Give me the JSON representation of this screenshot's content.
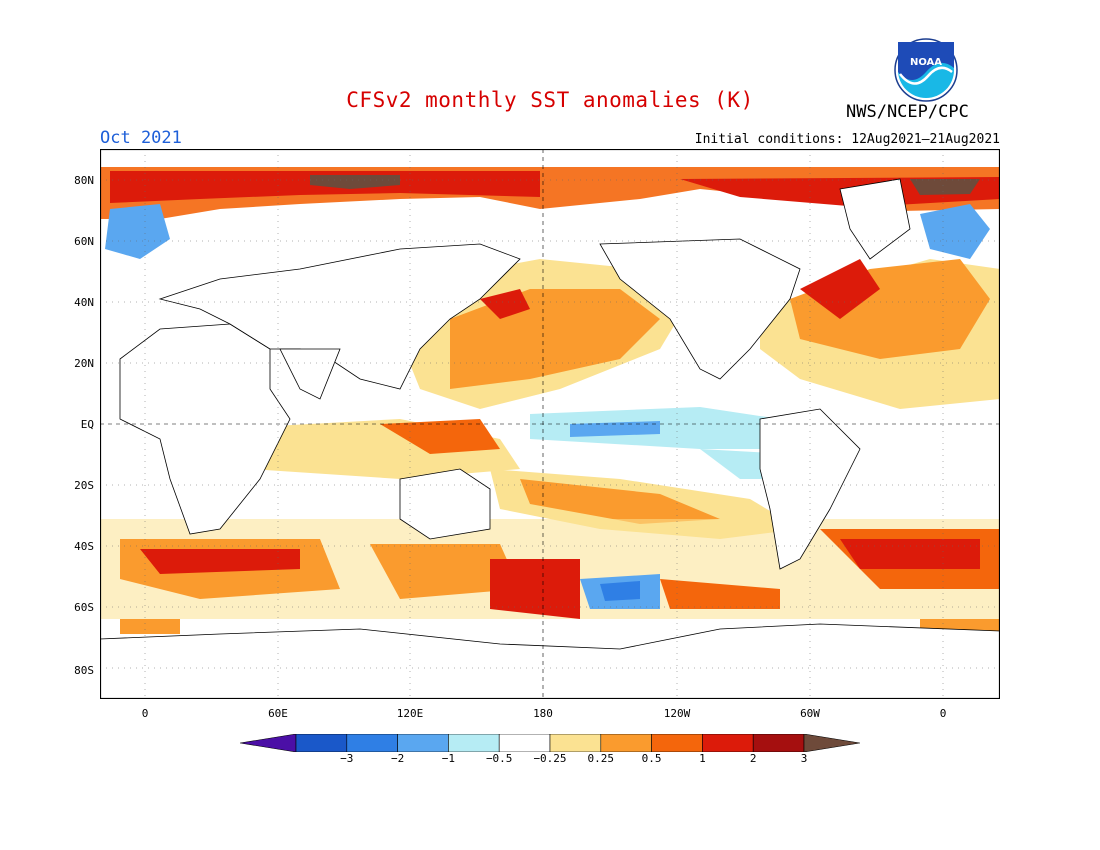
{
  "title": "CFSv2 monthly SST anomalies (K)",
  "month": "Oct 2021",
  "initial_conditions": "Initial conditions: 12Aug2021–21Aug2021",
  "agency": "NWS/NCEP/CPC",
  "logo_text": "NOAA",
  "colors": {
    "title": "#d60000",
    "month": "#1e5fd8",
    "ocean_zero": "#ffffff",
    "land_outline": "#000000"
  },
  "lat_labels": [
    "80N",
    "60N",
    "40N",
    "20N",
    "EQ",
    "20S",
    "40S",
    "60S",
    "80S"
  ],
  "lon_labels": [
    "0",
    "60E",
    "120E",
    "180",
    "120W",
    "60W",
    "0"
  ],
  "colorbar": {
    "bins": [
      "#4b0fa6",
      "#1a58c9",
      "#2f7fe5",
      "#5aa7f0",
      "#b6ecf4",
      "#ffffff",
      "#fbe292",
      "#fa9b2e",
      "#f4660c",
      "#dc1b0a",
      "#a50f0f",
      "#6e4a3a"
    ],
    "labels": [
      "−3",
      "−2",
      "−1",
      "−0.5",
      "−0.25",
      "0.25",
      "0.5",
      "1",
      "2",
      "3"
    ]
  }
}
